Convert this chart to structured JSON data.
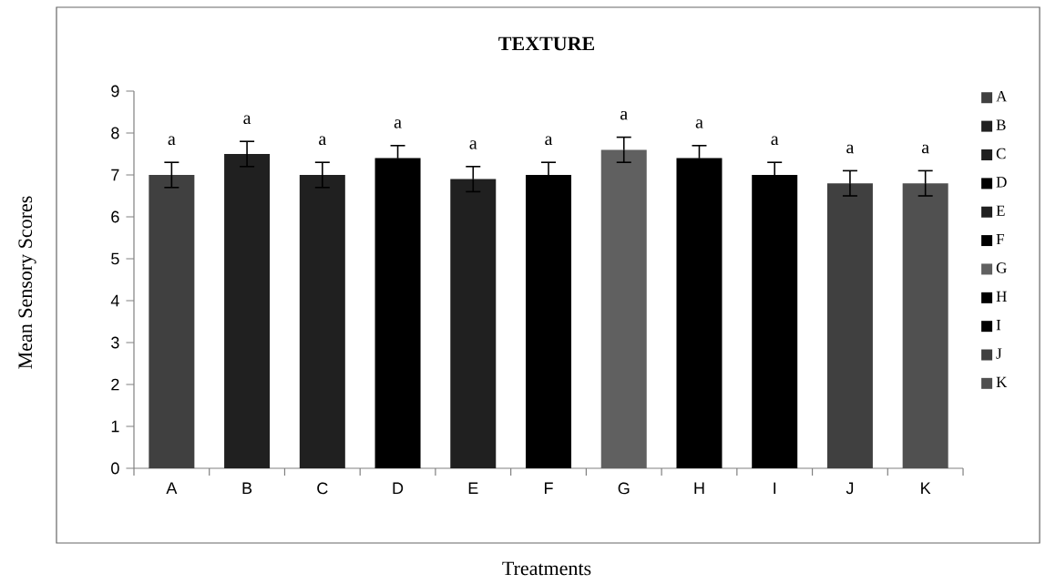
{
  "chart_data": {
    "type": "bar",
    "title": "TEXTURE",
    "xlabel": "Treatments",
    "ylabel": "Mean Sensory Scores",
    "categories": [
      "A",
      "B",
      "C",
      "D",
      "E",
      "F",
      "G",
      "H",
      "I",
      "J",
      "K"
    ],
    "series": [
      {
        "name": "A",
        "color": "#404040",
        "values": [
          7.0,
          null,
          null,
          null,
          null,
          null,
          null,
          null,
          null,
          null,
          null
        ],
        "errors": [
          0.3,
          null,
          null,
          null,
          null,
          null,
          null,
          null,
          null,
          null,
          null
        ]
      },
      {
        "name": "B",
        "color": "#202020",
        "values": [
          null,
          7.5,
          null,
          null,
          null,
          null,
          null,
          null,
          null,
          null,
          null
        ],
        "errors": [
          null,
          0.3,
          null,
          null,
          null,
          null,
          null,
          null,
          null,
          null,
          null
        ]
      },
      {
        "name": "C",
        "color": "#202020",
        "values": [
          null,
          null,
          7.0,
          null,
          null,
          null,
          null,
          null,
          null,
          null,
          null
        ],
        "errors": [
          null,
          null,
          0.3,
          null,
          null,
          null,
          null,
          null,
          null,
          null,
          null
        ]
      },
      {
        "name": "D",
        "color": "#000000",
        "values": [
          null,
          null,
          null,
          7.4,
          null,
          null,
          null,
          null,
          null,
          null,
          null
        ],
        "errors": [
          null,
          null,
          null,
          0.3,
          null,
          null,
          null,
          null,
          null,
          null,
          null
        ]
      },
      {
        "name": "E",
        "color": "#202020",
        "values": [
          null,
          null,
          null,
          null,
          6.9,
          null,
          null,
          null,
          null,
          null,
          null
        ],
        "errors": [
          null,
          null,
          null,
          null,
          0.3,
          null,
          null,
          null,
          null,
          null,
          null
        ]
      },
      {
        "name": "F",
        "color": "#000000",
        "values": [
          null,
          null,
          null,
          null,
          null,
          7.0,
          null,
          null,
          null,
          null,
          null
        ],
        "errors": [
          null,
          null,
          null,
          null,
          null,
          0.3,
          null,
          null,
          null,
          null,
          null
        ]
      },
      {
        "name": "G",
        "color": "#606060",
        "values": [
          null,
          null,
          null,
          null,
          null,
          null,
          7.6,
          null,
          null,
          null,
          null
        ],
        "errors": [
          null,
          null,
          null,
          null,
          null,
          null,
          0.3,
          null,
          null,
          null,
          null
        ]
      },
      {
        "name": "H",
        "color": "#000000",
        "values": [
          null,
          null,
          null,
          null,
          null,
          null,
          null,
          7.4,
          null,
          null,
          null
        ],
        "errors": [
          null,
          null,
          null,
          null,
          null,
          null,
          null,
          0.3,
          null,
          null,
          null
        ]
      },
      {
        "name": "I",
        "color": "#000000",
        "values": [
          null,
          null,
          null,
          null,
          null,
          null,
          null,
          null,
          7.0,
          null,
          null
        ],
        "errors": [
          null,
          null,
          null,
          null,
          null,
          null,
          null,
          null,
          0.3,
          null,
          null
        ]
      },
      {
        "name": "J",
        "color": "#404040",
        "values": [
          null,
          null,
          null,
          null,
          null,
          null,
          null,
          null,
          null,
          6.8,
          null
        ],
        "errors": [
          null,
          null,
          null,
          null,
          null,
          null,
          null,
          null,
          null,
          0.3,
          null
        ]
      },
      {
        "name": "K",
        "color": "#505050",
        "values": [
          null,
          null,
          null,
          null,
          null,
          null,
          null,
          null,
          null,
          null,
          6.8
        ],
        "errors": [
          null,
          null,
          null,
          null,
          null,
          null,
          null,
          null,
          null,
          null,
          0.3
        ]
      }
    ],
    "ylim": [
      0,
      9
    ],
    "yticks": [
      0,
      1,
      2,
      3,
      4,
      5,
      6,
      7,
      8,
      9
    ],
    "legend": "right",
    "annotations": [
      "a",
      "a",
      "a",
      "a",
      "a",
      "a",
      "a",
      "a",
      "a",
      "a",
      "a"
    ]
  }
}
